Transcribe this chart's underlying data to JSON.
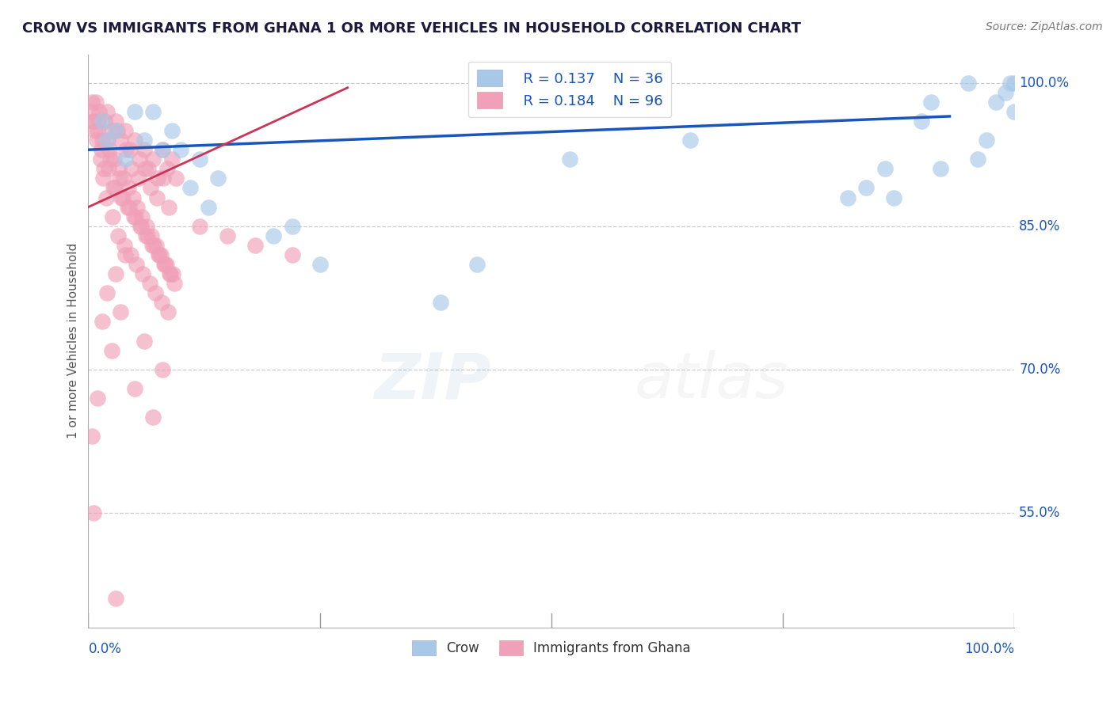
{
  "title": "CROW VS IMMIGRANTS FROM GHANA 1 OR MORE VEHICLES IN HOUSEHOLD CORRELATION CHART",
  "source": "Source: ZipAtlas.com",
  "ylabel": "1 or more Vehicles in Household",
  "xlim": [
    0,
    100
  ],
  "ylim": [
    43,
    103
  ],
  "yticks": [
    55.0,
    70.0,
    85.0,
    100.0
  ],
  "legend_blue_R": "R = 0.137",
  "legend_blue_N": "N = 36",
  "legend_pink_R": "R = 0.184",
  "legend_pink_N": "N = 96",
  "blue_color": "#a8c8e8",
  "pink_color": "#f0a0b8",
  "trendline_blue_color": "#1a55bb",
  "trendline_pink_color": "#cc3355",
  "watermark_zip_color": "#88aacc",
  "watermark_atlas_color": "#aaaaaa",
  "blue_trend_x": [
    0,
    93
  ],
  "blue_trend_y": [
    93.0,
    96.5
  ],
  "pink_trend_x": [
    0,
    28
  ],
  "pink_trend_y": [
    87.0,
    99.5
  ],
  "blue_x": [
    1.5,
    2.0,
    3.0,
    4.0,
    5.0,
    6.0,
    7.0,
    8.0,
    9.0,
    10.0,
    11.0,
    12.0,
    13.0,
    14.0,
    20.0,
    22.0,
    25.0,
    38.0,
    42.0,
    52.0,
    65.0,
    82.0,
    84.0,
    86.0,
    87.0,
    90.0,
    91.0,
    92.0,
    95.0,
    96.0,
    97.0,
    98.0,
    99.0,
    99.5,
    100.0,
    100.0
  ],
  "blue_y": [
    96,
    94,
    95,
    92,
    97,
    94,
    97,
    93,
    95,
    93,
    89,
    92,
    87,
    90,
    84,
    85,
    81,
    77,
    81,
    92,
    94,
    88,
    89,
    91,
    88,
    96,
    98,
    91,
    100,
    92,
    94,
    98,
    99,
    100,
    100,
    97
  ],
  "pink_x": [
    0.3,
    0.5,
    0.8,
    1.0,
    1.2,
    1.5,
    1.8,
    2.0,
    2.3,
    2.5,
    2.8,
    3.0,
    3.3,
    3.5,
    3.8,
    4.0,
    4.3,
    4.5,
    4.8,
    5.0,
    5.3,
    5.5,
    5.8,
    6.0,
    6.3,
    6.5,
    6.8,
    7.0,
    7.3,
    7.5,
    7.8,
    8.0,
    8.3,
    8.5,
    8.8,
    9.0,
    9.3,
    9.5,
    0.4,
    0.7,
    1.1,
    1.4,
    1.7,
    2.1,
    2.4,
    2.7,
    3.1,
    3.4,
    3.7,
    4.1,
    4.4,
    4.7,
    5.1,
    5.4,
    5.7,
    6.1,
    6.4,
    6.7,
    7.1,
    7.4,
    7.7,
    8.1,
    8.4,
    8.7,
    9.1,
    0.6,
    0.9,
    1.3,
    1.6,
    1.9,
    2.2,
    2.6,
    2.9,
    3.2,
    3.6,
    3.9,
    4.2,
    4.6,
    4.9,
    5.2,
    5.6,
    5.9,
    6.2,
    6.6,
    6.9,
    7.2,
    7.6,
    7.9,
    8.2,
    8.6,
    8.9,
    12.0,
    15.0,
    18.0,
    22.0,
    3.0
  ],
  "pink_y": [
    97,
    96,
    98,
    95,
    97,
    94,
    96,
    97,
    93,
    95,
    92,
    96,
    91,
    94,
    90,
    95,
    89,
    93,
    88,
    94,
    87,
    92,
    86,
    93,
    85,
    91,
    84,
    92,
    83,
    90,
    82,
    93,
    81,
    91,
    80,
    92,
    79,
    90,
    98,
    95,
    96,
    93,
    91,
    94,
    92,
    89,
    95,
    90,
    88,
    93,
    87,
    91,
    86,
    90,
    85,
    91,
    84,
    89,
    83,
    88,
    82,
    90,
    81,
    87,
    80,
    96,
    94,
    92,
    90,
    88,
    91,
    86,
    89,
    84,
    88,
    83,
    87,
    82,
    86,
    81,
    85,
    80,
    84,
    79,
    83,
    78,
    82,
    77,
    81,
    76,
    80,
    85,
    84,
    83,
    82,
    46
  ],
  "pink_low_x": [
    0.4,
    0.6,
    1.0,
    1.5,
    2.0,
    2.5,
    3.0,
    3.5,
    4.0,
    5.0,
    6.0,
    7.0,
    8.0
  ],
  "pink_low_y": [
    63,
    55,
    67,
    75,
    78,
    72,
    80,
    76,
    82,
    68,
    73,
    65,
    70
  ]
}
